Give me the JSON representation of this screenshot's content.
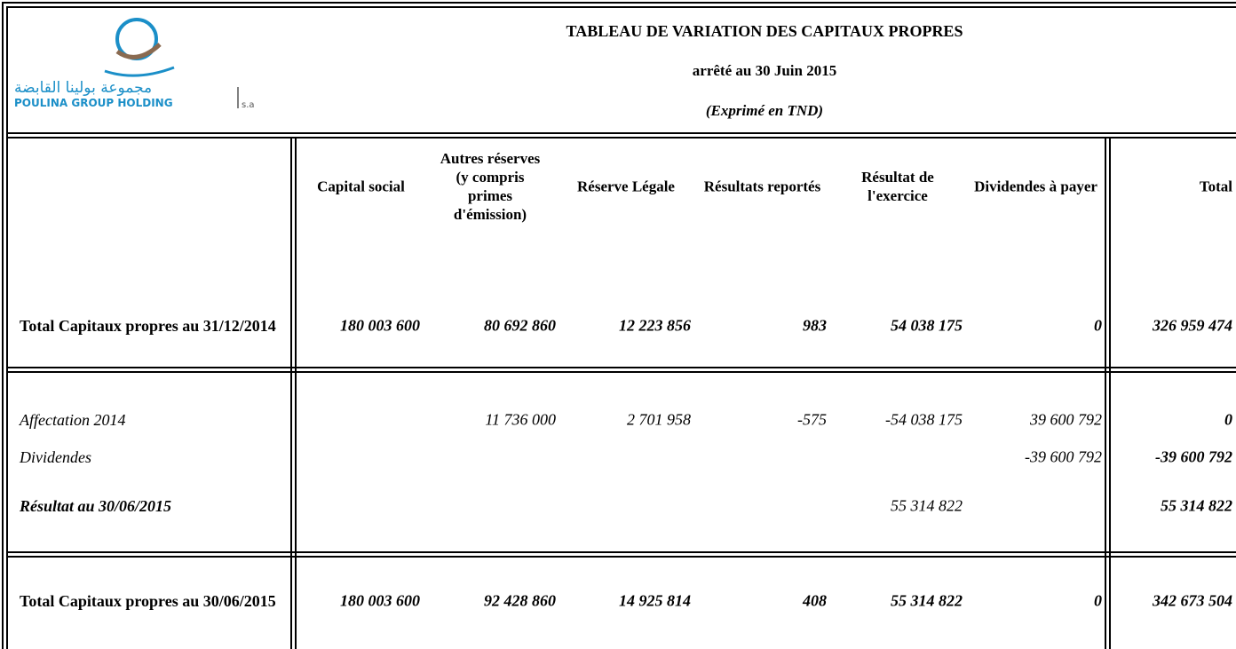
{
  "header": {
    "logo": {
      "arabic": "مجموعة بولينا القابضة",
      "name": "POULINA GROUP HOLDING",
      "suffix": "s.a"
    },
    "title": "TABLEAU DE VARIATION DES CAPITAUX PROPRES",
    "subtitle": "arrêté au 30 Juin 2015",
    "note": "(Exprimé en TND)"
  },
  "table": {
    "columns": [
      "Capital social",
      "Autres réserves (y compris primes d'émission)",
      "Réserve Légale",
      "Résultats reportés",
      "Résultat de l'exercice",
      "Dividendes à payer",
      "Total"
    ],
    "rows": [
      {
        "label": "Total Capitaux propres au 31/12/2014",
        "values": [
          "180 003 600",
          "80 692 860",
          "12 223 856",
          "983",
          "54 038 175",
          "0",
          "326 959 474"
        ]
      },
      {
        "label": "Affectation 2014",
        "values": [
          null,
          "11 736 000",
          "2 701 958",
          "-575",
          "-54 038 175",
          "39 600 792",
          "0"
        ]
      },
      {
        "label": "Dividendes",
        "values": [
          null,
          null,
          null,
          null,
          null,
          "-39 600 792",
          "-39 600 792"
        ]
      },
      {
        "label": "Résultat au 30/06/2015",
        "values": [
          null,
          null,
          null,
          null,
          "55 314 822",
          null,
          "55 314 822"
        ]
      },
      {
        "label": "Total Capitaux propres au 30/06/2015",
        "values": [
          "180 003 600",
          "92 428 860",
          "14 925 814",
          "408",
          "55 314 822",
          "0",
          "342 673 504"
        ]
      }
    ]
  }
}
